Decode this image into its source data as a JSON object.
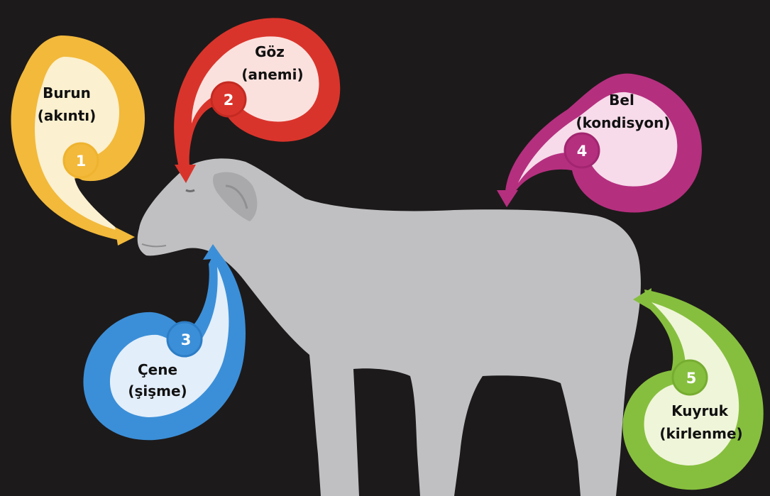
{
  "diagram": {
    "background": "#1d1a1b",
    "animal_color": "#c0c0c2",
    "callouts": [
      {
        "number": "1",
        "title": "Burun",
        "subtitle": "(akıntı)",
        "color": "#f2b93b",
        "light": "#fbf0cf"
      },
      {
        "number": "2",
        "title": "Göz",
        "subtitle": "(anemi)",
        "color": "#d9342b",
        "light": "#fbe1de"
      },
      {
        "number": "3",
        "title": "Çene",
        "subtitle": "(şişme)",
        "color": "#3b8fd8",
        "light": "#e2eefa"
      },
      {
        "number": "4",
        "title": "Bel",
        "subtitle": "(kondisyon)",
        "color": "#b52f7f",
        "light": "#f7dbea"
      },
      {
        "number": "5",
        "title": "Kuyruk",
        "subtitle": "(kirlenme)",
        "color": "#86bf3e",
        "light": "#eff5d9"
      }
    ]
  }
}
